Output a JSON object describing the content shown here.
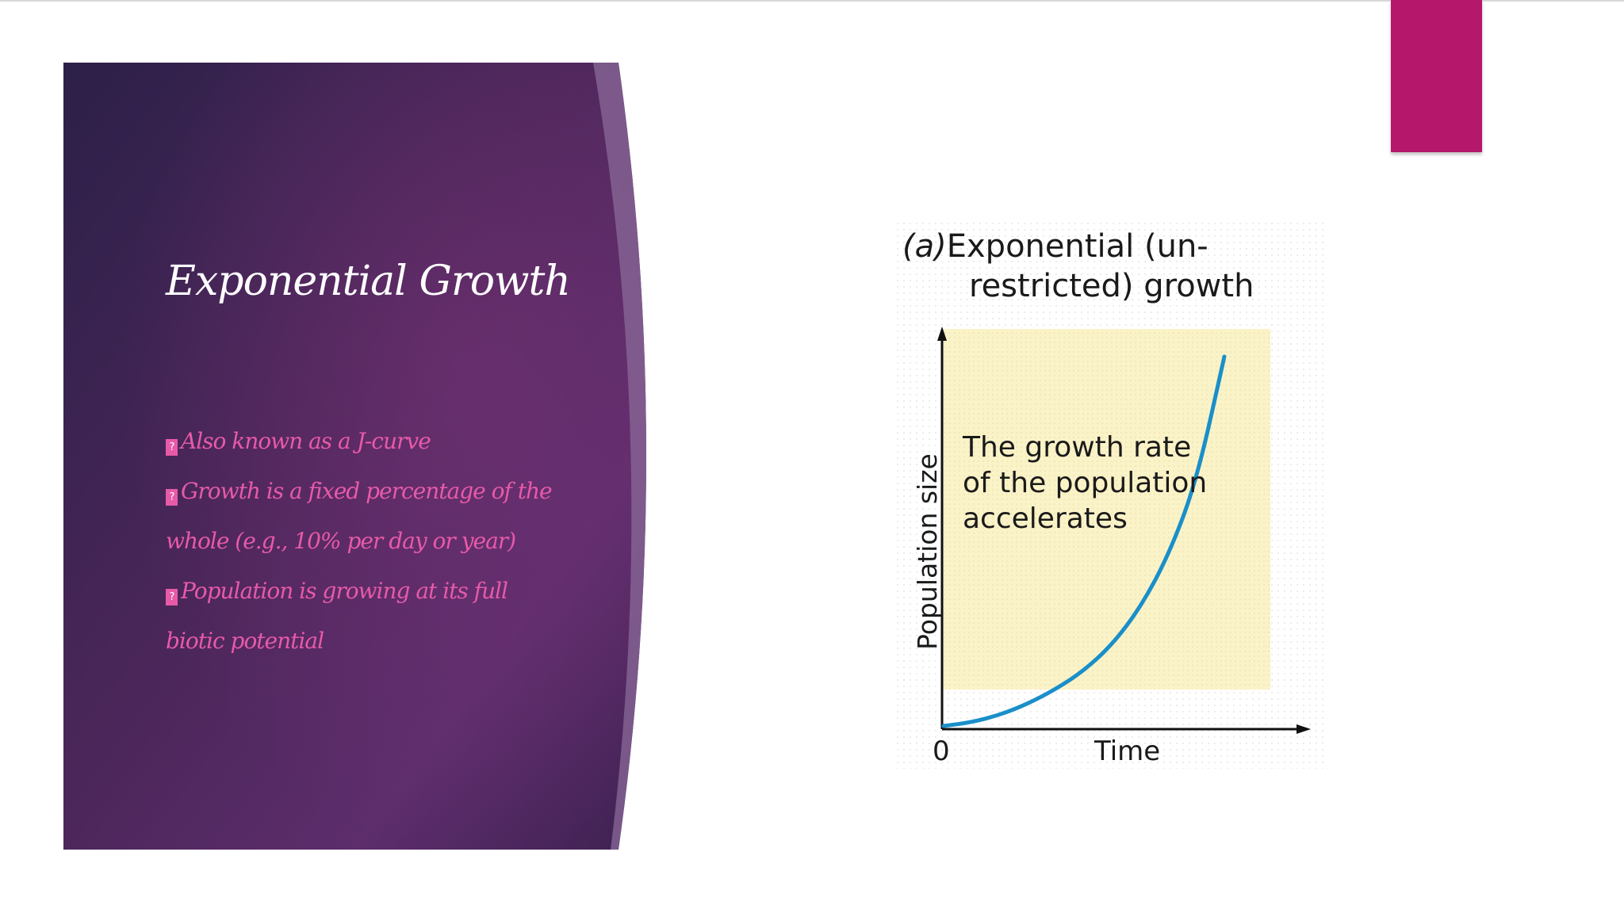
{
  "slide": {
    "title": "Exponential Growth",
    "bullet_glyph": "?",
    "bullets": [
      [
        "Also known as a J-curve"
      ],
      [
        "Growth is a fixed percentage of the",
        "whole (e.g., 10% per day or year)"
      ],
      [
        "Population is growing at its full",
        "biotic potential"
      ]
    ],
    "colors": {
      "accent": "#b5176a",
      "bullet_text": "#e75aa8",
      "panel_dark": "#2e2148",
      "panel_mid": "#6a2d6b"
    }
  },
  "figure": {
    "title_letter": "(a)",
    "title_line1": "Exponential (un-",
    "title_line2": "restricted) growth",
    "annotation": [
      "The growth rate",
      "of the population",
      "accelerates"
    ],
    "curve_color": "#1a8fc9",
    "plot_background": "#fbf3c8"
  },
  "chart_data": {
    "type": "line",
    "title": "(a)Exponential (un-restricted) growth",
    "xlabel": "Time",
    "ylabel": "Population size",
    "x_tick_labels": [
      "0"
    ],
    "series": [
      {
        "curve": "exponential (J-curve)",
        "x": [
          0,
          0.1,
          0.2,
          0.3,
          0.4,
          0.5,
          0.6,
          0.7,
          0.8,
          0.9,
          1.0
        ],
        "y": [
          0.0,
          0.01,
          0.03,
          0.06,
          0.1,
          0.15,
          0.22,
          0.32,
          0.46,
          0.66,
          1.0
        ]
      }
    ],
    "axis_ranges_normalized": {
      "x": [
        0,
        1
      ],
      "y": [
        0,
        1
      ]
    },
    "grid": false
  }
}
